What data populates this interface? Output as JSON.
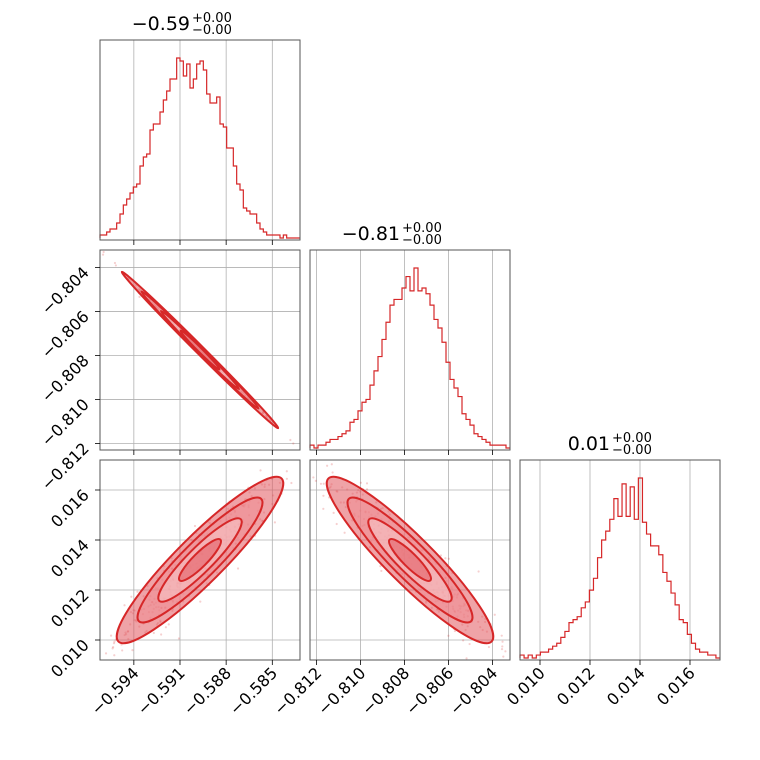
{
  "chart_data": {
    "type": "corner",
    "color": "#d62728",
    "fill_colors": [
      "#f7c8cb",
      "#ee8e94",
      "#e2585f"
    ],
    "grid": true,
    "params": [
      {
        "median": "−0.59",
        "err_plus": "+0.00",
        "err_minus": "−0.00",
        "range": [
          -0.5962,
          -0.5832
        ],
        "ticks": [
          -0.594,
          -0.591,
          -0.588,
          -0.585
        ],
        "tick_labels": [
          "−0.594",
          "−0.591",
          "−0.588",
          "−0.585"
        ]
      },
      {
        "median": "−0.81",
        "err_plus": "+0.00",
        "err_minus": "−0.00",
        "range": [
          -0.8123,
          -0.8032
        ],
        "ticks": [
          -0.812,
          -0.81,
          -0.808,
          -0.806,
          -0.804
        ],
        "tick_labels": [
          "−0.812",
          "−0.810",
          "−0.808",
          "−0.806",
          "−0.804"
        ]
      },
      {
        "median": "0.01",
        "err_plus": "+0.00",
        "err_minus": "−0.00",
        "range": [
          0.0092,
          0.0172
        ],
        "ticks": [
          0.01,
          0.012,
          0.014,
          0.016
        ],
        "tick_labels": [
          "0.010",
          "0.012",
          "0.014",
          "0.016"
        ]
      }
    ],
    "histograms": [
      {
        "param": 0,
        "counts": [
          1,
          1,
          2,
          3,
          3,
          5,
          8,
          11,
          13,
          15,
          17,
          18,
          24,
          27,
          28,
          36,
          38,
          38,
          42,
          46,
          49,
          53,
          53,
          60,
          59,
          54,
          58,
          50,
          53,
          58,
          59,
          56,
          48,
          45,
          45,
          47,
          38,
          37,
          30,
          30,
          24,
          18,
          16,
          10,
          9,
          8,
          8,
          5,
          3,
          2,
          1,
          1,
          1,
          1,
          0,
          1,
          0,
          0,
          0,
          0
        ]
      },
      {
        "param": 1,
        "counts": [
          1,
          0,
          1,
          1,
          2,
          3,
          3,
          4,
          5,
          6,
          9,
          10,
          13,
          16,
          17,
          22,
          27,
          32,
          38,
          44,
          50,
          52,
          52,
          56,
          60,
          55,
          63,
          55,
          56,
          54,
          50,
          45,
          42,
          37,
          30,
          24,
          21,
          18,
          12,
          10,
          8,
          5,
          4,
          3,
          2,
          1,
          1,
          1,
          1,
          0
        ]
      },
      {
        "param": 2,
        "counts": [
          1,
          0,
          1,
          0,
          1,
          2,
          2,
          3,
          4,
          5,
          7,
          9,
          12,
          13,
          14,
          17,
          19,
          23,
          27,
          34,
          40,
          43,
          47,
          54,
          48,
          59,
          48,
          58,
          47,
          61,
          46,
          42,
          38,
          38,
          35,
          29,
          26,
          22,
          18,
          13,
          12,
          8,
          5,
          3,
          2,
          2,
          1,
          1,
          0
        ]
      }
    ],
    "scatter_pairs": [
      {
        "x_param": 0,
        "y_param": 1,
        "correlation": -0.999,
        "sigma_scale": 1.6,
        "n_points": 260
      },
      {
        "x_param": 0,
        "y_param": 2,
        "correlation": 0.93,
        "sigma_scale": 1.7,
        "n_points": 380
      },
      {
        "x_param": 1,
        "y_param": 2,
        "correlation": -0.93,
        "sigma_scale": 1.7,
        "n_points": 380
      }
    ],
    "contour_levels": [
      0.5,
      1.0,
      1.5,
      2.0
    ]
  }
}
